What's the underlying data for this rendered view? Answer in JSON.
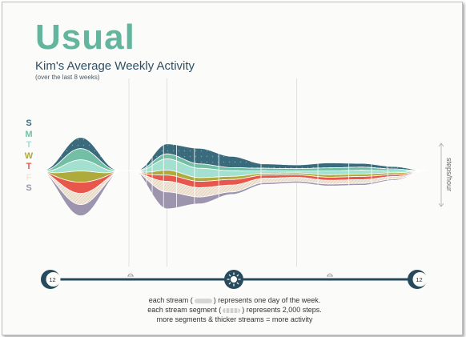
{
  "header": {
    "title": "Usual",
    "subtitle": "Kim's Average Weekly Activity",
    "period": "(over the last 8 weeks)"
  },
  "units_label": "steps/hour",
  "clock": {
    "start_label": "12",
    "end_label": "12"
  },
  "footnotes": {
    "line1_before": "each stream (",
    "line1_after": ") represents one day of the week.",
    "line2_before": "each stream segment (",
    "line2_after": ") represents 2,000 steps.",
    "line3": "more segments & thicker streams = more activity"
  },
  "colors": {
    "S_sun": "#3a6b7d",
    "M": "#73bfa6",
    "T_tue": "#a3e0cf",
    "W": "#aeaa3c",
    "T_thu": "#e8574b",
    "F": "#f2e6d6",
    "S_sat": "#9d94ad",
    "axis": "#274b5d"
  },
  "chart_data": {
    "type": "area",
    "hours": [
      0,
      2,
      4,
      6,
      8,
      10,
      12,
      14,
      16,
      18,
      20,
      22,
      24
    ],
    "ylabel": "steps/hour",
    "series": [
      {
        "name": "S",
        "values": [
          0,
          0,
          0,
          0,
          1600,
          2500,
          1800,
          700,
          600,
          800,
          600,
          400,
          0
        ]
      },
      {
        "name": "M",
        "values": [
          0,
          0,
          0,
          0,
          800,
          700,
          500,
          400,
          400,
          500,
          500,
          300,
          0
        ]
      },
      {
        "name": "T",
        "values": [
          0,
          0,
          0,
          0,
          1800,
          1500,
          900,
          400,
          300,
          600,
          600,
          300,
          0
        ]
      },
      {
        "name": "W",
        "values": [
          0,
          0,
          0,
          0,
          800,
          600,
          500,
          300,
          300,
          400,
          400,
          300,
          0
        ]
      },
      {
        "name": "T",
        "values": [
          0,
          0,
          0,
          0,
          1000,
          1000,
          900,
          500,
          400,
          500,
          500,
          300,
          0
        ]
      },
      {
        "name": "F",
        "values": [
          0,
          0,
          0,
          0,
          1700,
          1500,
          1100,
          700,
          600,
          600,
          600,
          400,
          0
        ]
      },
      {
        "name": "S",
        "values": [
          0,
          0,
          0,
          0,
          2700,
          1100,
          400,
          300,
          300,
          300,
          300,
          200,
          0
        ]
      }
    ]
  }
}
